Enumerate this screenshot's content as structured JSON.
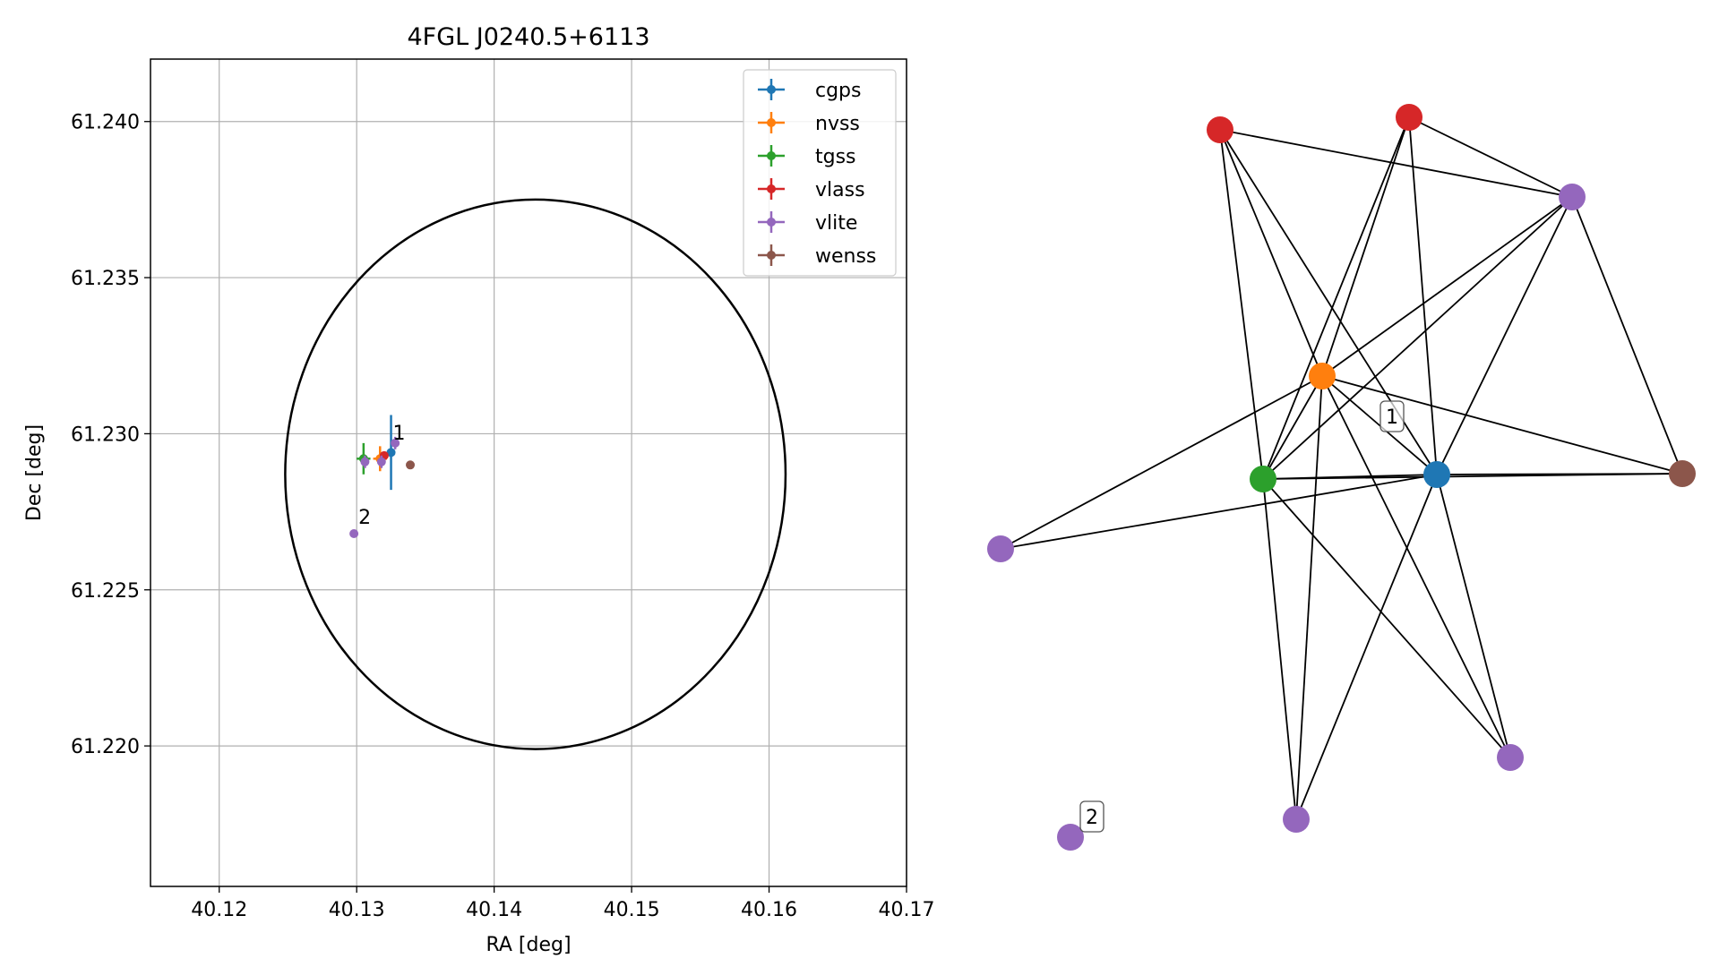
{
  "chart_data": [
    {
      "type": "scatter",
      "title": "4FGL J0240.5+6113",
      "xlabel": "RA [deg]",
      "ylabel": "Dec [deg]",
      "xlim": [
        40.115,
        40.17
      ],
      "ylim": [
        61.2155,
        61.242
      ],
      "x_ticks": [
        "40.12",
        "40.13",
        "40.14",
        "40.15",
        "40.16",
        "40.17"
      ],
      "y_ticks": [
        "61.220",
        "61.225",
        "61.230",
        "61.235",
        "61.240"
      ],
      "grid": true,
      "legend": {
        "position": "top-right",
        "entries": [
          {
            "name": "cgps",
            "color": "#1f77b4"
          },
          {
            "name": "nvss",
            "color": "#ff7f0e"
          },
          {
            "name": "tgss",
            "color": "#2ca02c"
          },
          {
            "name": "vlass",
            "color": "#d62728"
          },
          {
            "name": "vlite",
            "color": "#9467bd"
          },
          {
            "name": "wenss",
            "color": "#8c564b"
          }
        ]
      },
      "ellipse": {
        "center": [
          40.143,
          61.2287
        ],
        "semi_axis_ra": 0.0182,
        "semi_axis_dec": 0.0088,
        "color": "#000000"
      },
      "series": [
        {
          "name": "cgps",
          "color": "#1f77b4",
          "points": [
            {
              "x": 40.1325,
              "y": 61.2294,
              "xerr": 0.0002,
              "yerr": 0.0012
            }
          ]
        },
        {
          "name": "nvss",
          "color": "#ff7f0e",
          "points": [
            {
              "x": 40.1317,
              "y": 61.2292,
              "xerr": 0.0005,
              "yerr": 0.0004
            }
          ]
        },
        {
          "name": "tgss",
          "color": "#2ca02c",
          "points": [
            {
              "x": 40.1305,
              "y": 61.2292,
              "xerr": 0.0005,
              "yerr": 0.0005
            }
          ]
        },
        {
          "name": "vlass",
          "color": "#d62728",
          "points": [
            {
              "x": 40.132,
              "y": 61.2293,
              "xerr": 0.0002,
              "yerr": 0.0001
            }
          ]
        },
        {
          "name": "vlite",
          "color": "#9467bd",
          "points": [
            {
              "x": 40.1328,
              "y": 61.2297,
              "xerr": 0.0002,
              "yerr": 0.0002
            },
            {
              "x": 40.1306,
              "y": 61.2291,
              "xerr": 0.0003,
              "yerr": 0.0002
            },
            {
              "x": 40.1318,
              "y": 61.2291,
              "xerr": 0.0002,
              "yerr": 0.0002
            },
            {
              "x": 40.1298,
              "y": 61.2268,
              "xerr": 0,
              "yerr": 0
            }
          ]
        },
        {
          "name": "wenss",
          "color": "#8c564b",
          "points": [
            {
              "x": 40.1339,
              "y": 61.229,
              "xerr": 0,
              "yerr": 0
            }
          ]
        }
      ],
      "annotations": [
        {
          "text": "1",
          "x": 40.1325,
          "y": 61.2297
        },
        {
          "text": "2",
          "x": 40.13,
          "y": 61.227
        }
      ]
    },
    {
      "type": "network",
      "nodes": [
        {
          "id": "red-a",
          "color": "#d62728"
        },
        {
          "id": "red-b",
          "color": "#d62728"
        },
        {
          "id": "purple-top",
          "color": "#9467bd"
        },
        {
          "id": "orange",
          "color": "#ff7f0e"
        },
        {
          "id": "green",
          "color": "#2ca02c"
        },
        {
          "id": "blue",
          "color": "#1f77b4"
        },
        {
          "id": "brown",
          "color": "#8c564b"
        },
        {
          "id": "purple-left",
          "color": "#9467bd"
        },
        {
          "id": "purple-br",
          "color": "#9467bd"
        },
        {
          "id": "purple-bottom",
          "color": "#9467bd"
        },
        {
          "id": "purple-isolated",
          "color": "#9467bd"
        }
      ],
      "edges": [
        [
          "red-a",
          "purple-top"
        ],
        [
          "red-a",
          "green"
        ],
        [
          "red-a",
          "orange"
        ],
        [
          "red-a",
          "blue"
        ],
        [
          "red-b",
          "purple-top"
        ],
        [
          "red-b",
          "orange"
        ],
        [
          "red-b",
          "green"
        ],
        [
          "red-b",
          "blue"
        ],
        [
          "purple-top",
          "orange"
        ],
        [
          "purple-top",
          "green"
        ],
        [
          "purple-top",
          "blue"
        ],
        [
          "purple-top",
          "brown"
        ],
        [
          "orange",
          "green"
        ],
        [
          "orange",
          "blue"
        ],
        [
          "orange",
          "brown"
        ],
        [
          "orange",
          "purple-left"
        ],
        [
          "orange",
          "purple-br"
        ],
        [
          "orange",
          "purple-bottom"
        ],
        [
          "green",
          "blue"
        ],
        [
          "green",
          "brown"
        ],
        [
          "green",
          "purple-bottom"
        ],
        [
          "green",
          "purple-br"
        ],
        [
          "blue",
          "brown"
        ],
        [
          "blue",
          "purple-left"
        ],
        [
          "blue",
          "purple-bottom"
        ],
        [
          "blue",
          "purple-br"
        ]
      ],
      "labels": [
        {
          "text": "1",
          "near": "orange"
        },
        {
          "text": "2",
          "near": "purple-isolated"
        }
      ]
    }
  ]
}
